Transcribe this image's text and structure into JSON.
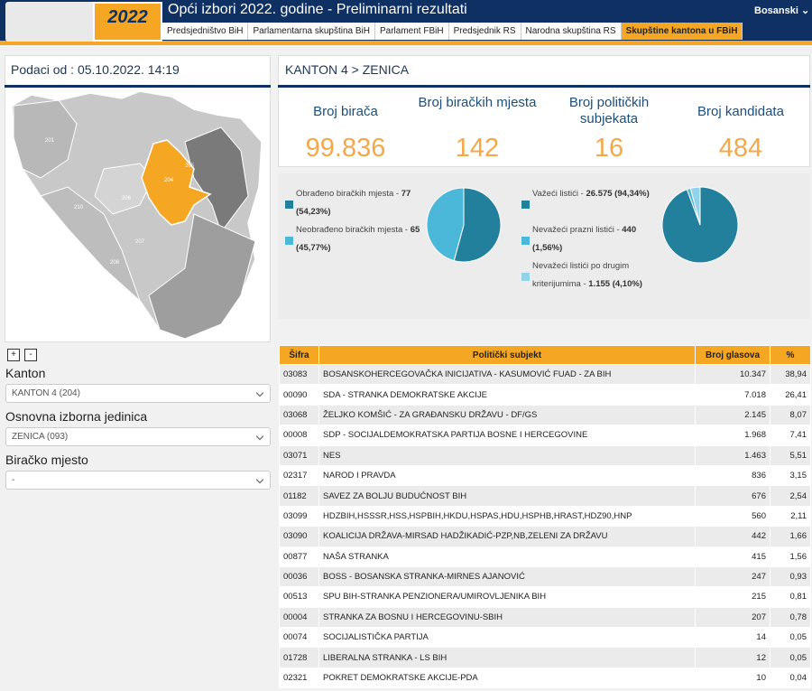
{
  "header": {
    "logo": "2022",
    "title": "Opći izbori 2022. godine - Preliminarni rezultati",
    "language": "Bosanski",
    "tabs": [
      "Predsjedništvo BiH",
      "Parlamentarna skupština BiH",
      "Parlament FBiH",
      "Predsjednik RS",
      "Narodna skupština RS",
      "Skupštine kantona u FBiH"
    ],
    "active_tab": 5
  },
  "left": {
    "date_label": "Podaci od : 05.10.2022. 14:19",
    "map_labels": [
      "201",
      "205",
      "204",
      "206",
      "210",
      "207",
      "208"
    ],
    "zoom_in": "+",
    "zoom_out": "-",
    "filters": [
      {
        "label": "Kanton",
        "value": "KANTON 4 (204)"
      },
      {
        "label": "Osnovna izborna jedinica",
        "value": "ZENICA (093)"
      },
      {
        "label": "Biračko mjesto",
        "value": "-"
      }
    ]
  },
  "right": {
    "breadcrumb": "KANTON 4 > ZENICA",
    "stats": [
      {
        "label": "Broj birača",
        "value": "99.836"
      },
      {
        "label": "Broj biračkih mjesta",
        "value": "142"
      },
      {
        "label": "Broj političkih subjekata",
        "value": "16"
      },
      {
        "label": "Broj kandidata",
        "value": "484"
      }
    ],
    "pies": [
      {
        "labels": [
          "Obrađeno biračkih mjesta -",
          "Neobrađeno biračkih mjesta -"
        ],
        "values": [
          77,
          65
        ],
        "value_labels": [
          "77 (54,23%)",
          "65 (45,77%)"
        ],
        "colors": [
          "#22809d",
          "#4bb7d9"
        ]
      },
      {
        "labels": [
          "Važeći listići -",
          "Nevažeći prazni listići -",
          "Nevažeći listići po drugim kriterijumima -"
        ],
        "values": [
          26575,
          440,
          1155
        ],
        "value_labels": [
          "26.575 (94,34%)",
          "440 (1,56%)",
          "1.155 (4,10%)"
        ],
        "colors": [
          "#22809d",
          "#4bb7d9",
          "#93d3ea"
        ]
      }
    ],
    "table": {
      "columns": [
        "Šifra",
        "Politički subjekt",
        "Broj glasova",
        "%"
      ],
      "rows": [
        [
          "03083",
          "BOSANSKOHERCEGOVAČKA INICIJATIVA - KASUMOVIĆ FUAD - ZA BIH",
          "10.347",
          "38,94"
        ],
        [
          "00090",
          "SDA - STRANKA DEMOKRATSKE AKCIJE",
          "7.018",
          "26,41"
        ],
        [
          "03068",
          "ŽELJKO KOMŠIĆ - ZA GRAĐANSKU DRŽAVU - DF/GS",
          "2.145",
          "8,07"
        ],
        [
          "00008",
          "SDP - SOCIJALDEMOKRATSKA PARTIJA BOSNE I HERCEGOVINE",
          "1.968",
          "7,41"
        ],
        [
          "03071",
          "NES",
          "1.463",
          "5,51"
        ],
        [
          "02317",
          "NAROD I PRAVDA",
          "836",
          "3,15"
        ],
        [
          "01182",
          "SAVEZ ZA BOLJU BUDUĆNOST BIH",
          "676",
          "2,54"
        ],
        [
          "03099",
          "HDZBIH,HSSSR,HSS,HSPBIH,HKDU,HSPAS,HDU,HSPHB,HRAST,HDZ90,HNP",
          "560",
          "2,11"
        ],
        [
          "03090",
          "KOALICIJA DRŽAVA-MIRSAD HADŽIKADIĆ-PZP,NB,ZELENI ZA DRŽAVU",
          "442",
          "1,66"
        ],
        [
          "00877",
          "NAŠA STRANKA",
          "415",
          "1,56"
        ],
        [
          "00036",
          "BOSS - BOSANSKA STRANKA-MIRNES AJANOVIĆ",
          "247",
          "0,93"
        ],
        [
          "00513",
          "SPU BIH-STRANKA PENZIONERA/UMIROVLJENIKA BIH",
          "215",
          "0,81"
        ],
        [
          "00004",
          "STRANKA ZA BOSNU I HERCEGOVINU-SBIH",
          "207",
          "0,78"
        ],
        [
          "00074",
          "SOCIJALISTIČKA PARTIJA",
          "14",
          "0,05"
        ],
        [
          "01728",
          "LIBERALNA STRANKA - LS BIH",
          "12",
          "0,05"
        ],
        [
          "02321",
          "POKRET DEMOKRATSKE AKCIJE-PDA",
          "10",
          "0,04"
        ]
      ]
    }
  }
}
